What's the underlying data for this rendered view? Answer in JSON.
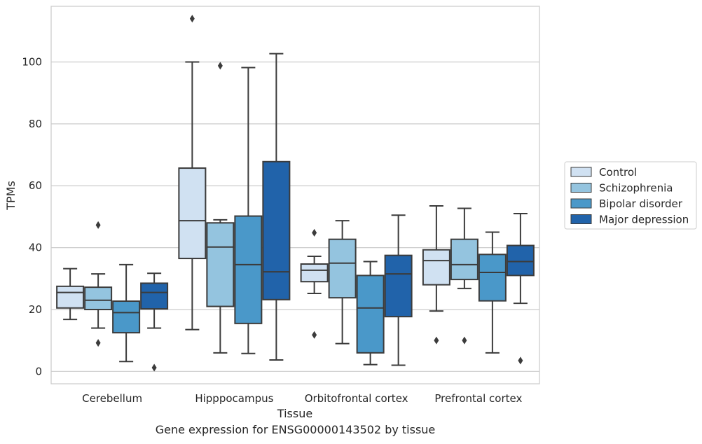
{
  "chart_data": {
    "type": "boxplot",
    "caption": "Gene expression for ENSG00000143502 by tissue",
    "xlabel": "Tissue",
    "ylabel": "TPMs",
    "ylim": [
      -4,
      118
    ],
    "yticks": [
      0,
      20,
      40,
      60,
      80,
      100
    ],
    "grid": true,
    "legend_position": "right",
    "categories": [
      "Cerebellum",
      "Hipppocampus",
      "Orbitofrontal cortex",
      "Prefrontal cortex"
    ],
    "series": [
      {
        "name": "Control",
        "color": "#d0e1f2",
        "boxes": [
          {
            "whislo": 16.8,
            "q1": 20.5,
            "med": 25.5,
            "q3": 27.5,
            "whishi": 33.2,
            "fliers": []
          },
          {
            "whislo": 13.5,
            "q1": 36.5,
            "med": 48.7,
            "q3": 65.7,
            "whishi": 100.0,
            "fliers": [
              114.0
            ]
          },
          {
            "whislo": 25.2,
            "q1": 29.0,
            "med": 32.7,
            "q3": 34.7,
            "whishi": 37.2,
            "fliers": [
              44.8,
              11.8
            ]
          },
          {
            "whislo": 19.5,
            "q1": 28.0,
            "med": 35.8,
            "q3": 39.3,
            "whishi": 53.5,
            "fliers": [
              10.0
            ]
          }
        ]
      },
      {
        "name": "Schizophrenia",
        "color": "#94c4df",
        "boxes": [
          {
            "whislo": 14.0,
            "q1": 20.0,
            "med": 23.0,
            "q3": 27.2,
            "whishi": 31.5,
            "fliers": [
              47.3,
              9.2
            ]
          },
          {
            "whislo": 6.0,
            "q1": 21.0,
            "med": 40.2,
            "q3": 48.0,
            "whishi": 49.0,
            "fliers": [
              98.8
            ]
          },
          {
            "whislo": 9.0,
            "q1": 23.8,
            "med": 35.0,
            "q3": 42.7,
            "whishi": 48.7,
            "fliers": []
          },
          {
            "whislo": 26.8,
            "q1": 29.7,
            "med": 34.5,
            "q3": 42.7,
            "whishi": 52.7,
            "fliers": [
              10.0
            ]
          }
        ]
      },
      {
        "name": "Bipolar disorder",
        "color": "#4a98c9",
        "boxes": [
          {
            "whislo": 3.2,
            "q1": 12.5,
            "med": 19.0,
            "q3": 22.7,
            "whishi": 34.5,
            "fliers": []
          },
          {
            "whislo": 5.8,
            "q1": 15.5,
            "med": 34.5,
            "q3": 50.2,
            "whishi": 98.2,
            "fliers": []
          },
          {
            "whislo": 2.2,
            "q1": 6.0,
            "med": 20.5,
            "q3": 31.0,
            "whishi": 35.5,
            "fliers": []
          },
          {
            "whislo": 6.0,
            "q1": 22.8,
            "med": 32.0,
            "q3": 37.8,
            "whishi": 45.0,
            "fliers": []
          }
        ]
      },
      {
        "name": "Major depression",
        "color": "#2163aa",
        "boxes": [
          {
            "whislo": 14.0,
            "q1": 20.2,
            "med": 25.5,
            "q3": 28.5,
            "whishi": 31.7,
            "fliers": [
              1.2
            ]
          },
          {
            "whislo": 3.7,
            "q1": 23.2,
            "med": 32.2,
            "q3": 67.8,
            "whishi": 102.7,
            "fliers": []
          },
          {
            "whislo": 2.0,
            "q1": 17.7,
            "med": 31.5,
            "q3": 37.5,
            "whishi": 50.5,
            "fliers": []
          },
          {
            "whislo": 22.0,
            "q1": 31.0,
            "med": 35.5,
            "q3": 40.7,
            "whishi": 51.0,
            "fliers": [
              3.5
            ]
          }
        ]
      }
    ]
  }
}
